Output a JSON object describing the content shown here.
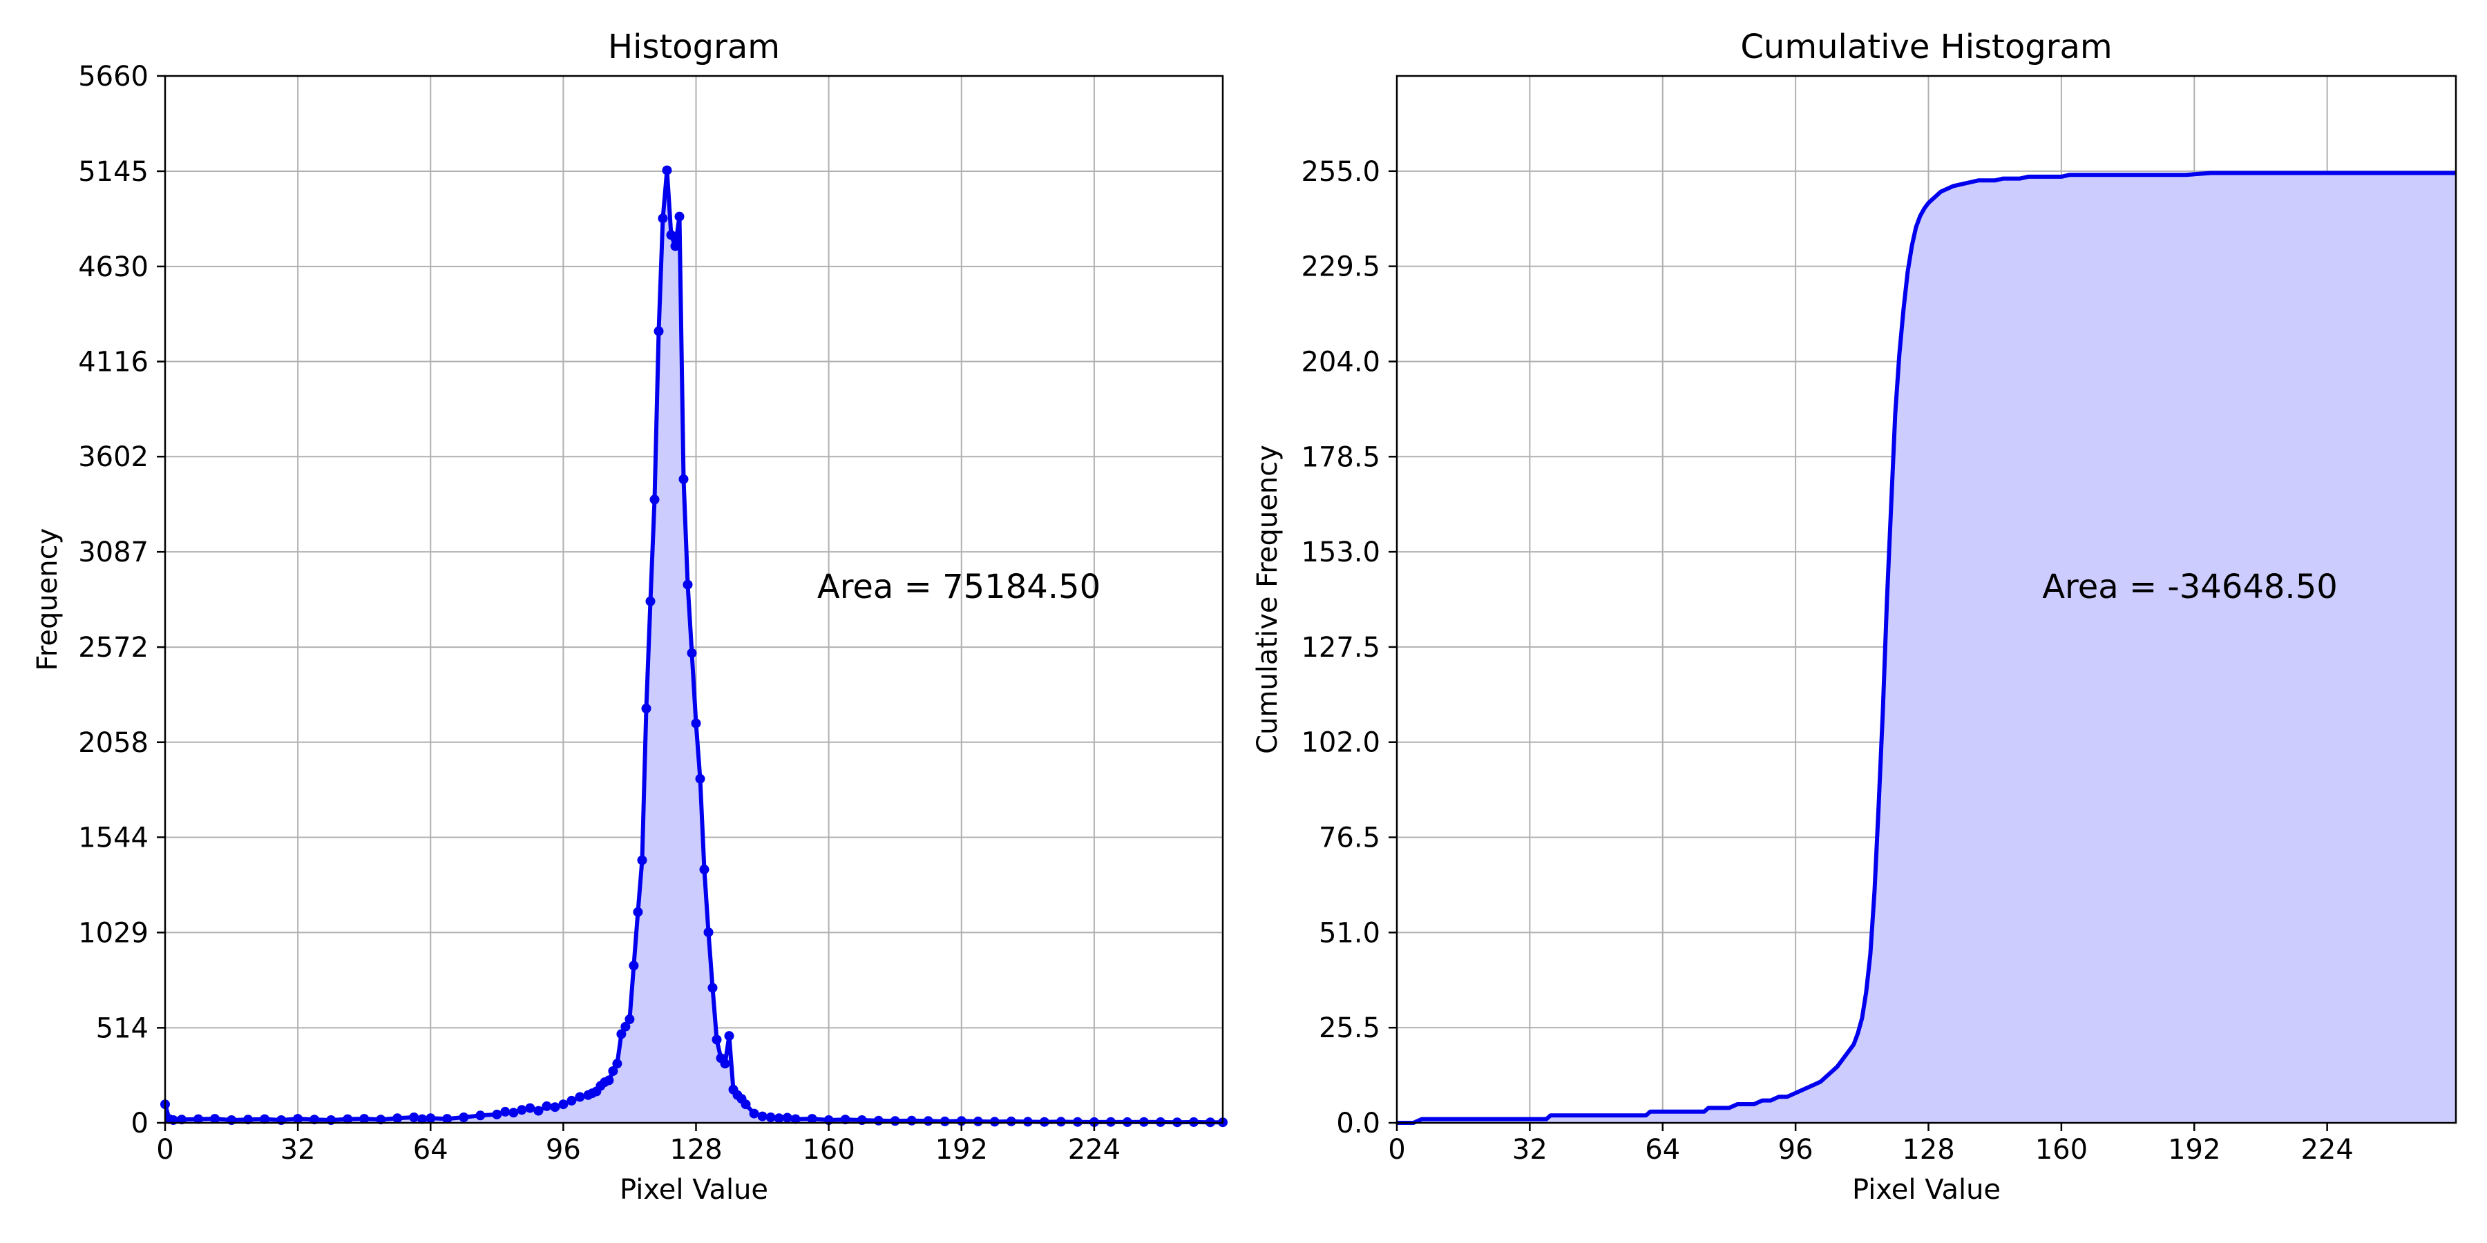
{
  "chart_data": [
    {
      "type": "area",
      "title": "Histogram",
      "xlabel": "Pixel Value",
      "ylabel": "Frequency",
      "xlim": [
        0,
        255
      ],
      "ylim": [
        0,
        5660
      ],
      "xticks": [
        0,
        32,
        64,
        96,
        128,
        160,
        192,
        224
      ],
      "xtick_labels": [
        "0",
        "32",
        "64",
        "96",
        "128",
        "160",
        "192",
        "224"
      ],
      "yticks": [
        0,
        514,
        1029,
        1544,
        2058,
        2572,
        3087,
        3602,
        4116,
        4630,
        5145,
        5660
      ],
      "ytick_labels": [
        "0",
        "514",
        "1029",
        "1544",
        "2058",
        "2572",
        "3087",
        "3602",
        "4116",
        "4630",
        "5145",
        "5660"
      ],
      "grid": true,
      "markers": true,
      "annotation": "Area = 75184.50",
      "series_color": "#0000ee",
      "fill_color": "#ccccff",
      "x": [
        0,
        1,
        2,
        4,
        8,
        12,
        16,
        20,
        24,
        28,
        32,
        36,
        40,
        44,
        48,
        52,
        56,
        60,
        62,
        64,
        68,
        72,
        76,
        80,
        82,
        84,
        86,
        88,
        90,
        92,
        94,
        96,
        98,
        100,
        102,
        103,
        104,
        105,
        106,
        107,
        108,
        109,
        110,
        111,
        112,
        113,
        114,
        115,
        116,
        117,
        118,
        119,
        120,
        121,
        122,
        123,
        124,
        125,
        126,
        127,
        128,
        129,
        130,
        131,
        132,
        133,
        134,
        135,
        136,
        137,
        138,
        139,
        140,
        142,
        144,
        146,
        148,
        150,
        152,
        156,
        160,
        164,
        168,
        172,
        176,
        180,
        184,
        188,
        192,
        196,
        200,
        204,
        208,
        212,
        216,
        220,
        224,
        228,
        232,
        236,
        240,
        244,
        248,
        252,
        255
      ],
      "y": [
        100,
        20,
        15,
        18,
        20,
        22,
        15,
        18,
        20,
        15,
        22,
        18,
        15,
        20,
        22,
        18,
        25,
        30,
        20,
        25,
        22,
        30,
        40,
        45,
        60,
        55,
        70,
        80,
        65,
        90,
        85,
        100,
        120,
        140,
        150,
        160,
        170,
        200,
        220,
        230,
        280,
        320,
        480,
        520,
        560,
        850,
        1140,
        1420,
        2240,
        2820,
        3370,
        4280,
        4890,
        5150,
        4800,
        4740,
        4900,
        3480,
        2910,
        2540,
        2160,
        1860,
        1370,
        1030,
        730,
        450,
        350,
        320,
        470,
        180,
        150,
        130,
        100,
        50,
        35,
        30,
        25,
        28,
        20,
        22,
        15,
        18,
        15,
        12,
        10,
        12,
        10,
        8,
        10,
        8,
        6,
        8,
        6,
        5,
        6,
        5,
        4,
        5,
        4,
        5,
        4,
        3,
        4,
        3,
        3
      ]
    },
    {
      "type": "area",
      "title": "Cumulative Histogram",
      "xlabel": "Pixel Value",
      "ylabel": "Cumulative Frequency",
      "xlim": [
        0,
        255
      ],
      "ylim": [
        0,
        280.5
      ],
      "xticks": [
        0,
        32,
        64,
        96,
        128,
        160,
        192,
        224
      ],
      "xtick_labels": [
        "0",
        "32",
        "64",
        "96",
        "128",
        "160",
        "192",
        "224"
      ],
      "yticks": [
        0.0,
        25.5,
        51.0,
        76.5,
        102.0,
        127.5,
        153.0,
        178.5,
        204.0,
        229.5,
        255.0
      ],
      "ytick_labels": [
        "0.0",
        "25.5",
        "51.0",
        "76.5",
        "102.0",
        "127.5",
        "153.0",
        "178.5",
        "204.0",
        "229.5",
        "255.0"
      ],
      "grid": true,
      "markers": false,
      "annotation": "Area = -34648.50",
      "series_color": "#0000ee",
      "fill_color": "#ccccff",
      "x": [
        0,
        4,
        6,
        8,
        36,
        37,
        38,
        60,
        61,
        62,
        74,
        75,
        76,
        80,
        82,
        86,
        88,
        90,
        92,
        94,
        96,
        98,
        100,
        102,
        104,
        106,
        108,
        110,
        111,
        112,
        113,
        114,
        115,
        116,
        117,
        118,
        119,
        120,
        121,
        122,
        123,
        124,
        125,
        126,
        127,
        128,
        129,
        130,
        131,
        132,
        134,
        136,
        138,
        140,
        144,
        146,
        150,
        152,
        160,
        162,
        190,
        196,
        200,
        255
      ],
      "y": [
        0,
        0,
        1,
        1,
        1,
        2,
        2,
        2,
        3,
        3,
        3,
        4,
        4,
        4,
        5,
        5,
        6,
        6,
        7,
        7,
        8,
        9,
        10,
        11,
        13,
        15,
        18,
        21,
        24,
        28,
        35,
        45,
        62,
        85,
        110,
        140,
        165,
        190,
        206,
        218,
        228,
        235,
        240,
        243,
        245,
        246.5,
        247.5,
        248.5,
        249.5,
        250,
        251,
        251.5,
        252,
        252.5,
        252.5,
        253,
        253,
        253.5,
        253.5,
        254,
        254,
        254.5,
        254.5,
        254.5
      ]
    }
  ]
}
